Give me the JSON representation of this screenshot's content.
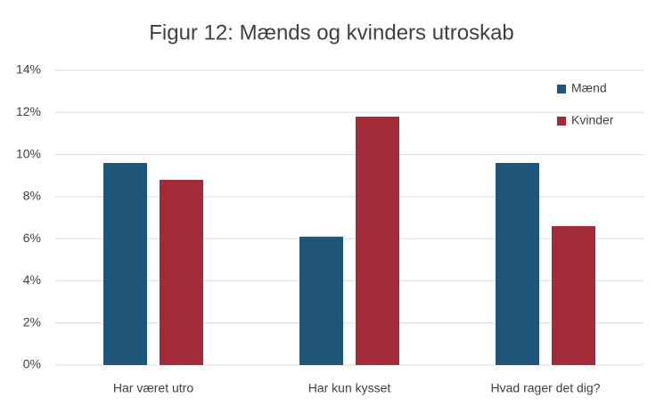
{
  "chart_data": {
    "type": "bar",
    "title": "Figur 12: Mænds og kvinders utroskab",
    "categories": [
      "Har været utro",
      "Har kun kysset",
      "Hvad rager det dig?"
    ],
    "series": [
      {
        "name": "Mænd",
        "color": "#1f5579",
        "values": [
          9.6,
          6.1,
          9.6
        ]
      },
      {
        "name": "Kvinder",
        "color": "#a32a39",
        "values": [
          8.8,
          11.8,
          6.6
        ]
      }
    ],
    "ylim": [
      0,
      14
    ],
    "yticks": [
      {
        "value": 0,
        "label": "0%"
      },
      {
        "value": 2,
        "label": "2%"
      },
      {
        "value": 4,
        "label": "4%"
      },
      {
        "value": 6,
        "label": "6%"
      },
      {
        "value": 8,
        "label": "8%"
      },
      {
        "value": 10,
        "label": "10%"
      },
      {
        "value": 12,
        "label": "12%"
      },
      {
        "value": 14,
        "label": "14%"
      }
    ],
    "grid": true,
    "legend": "upper right"
  }
}
